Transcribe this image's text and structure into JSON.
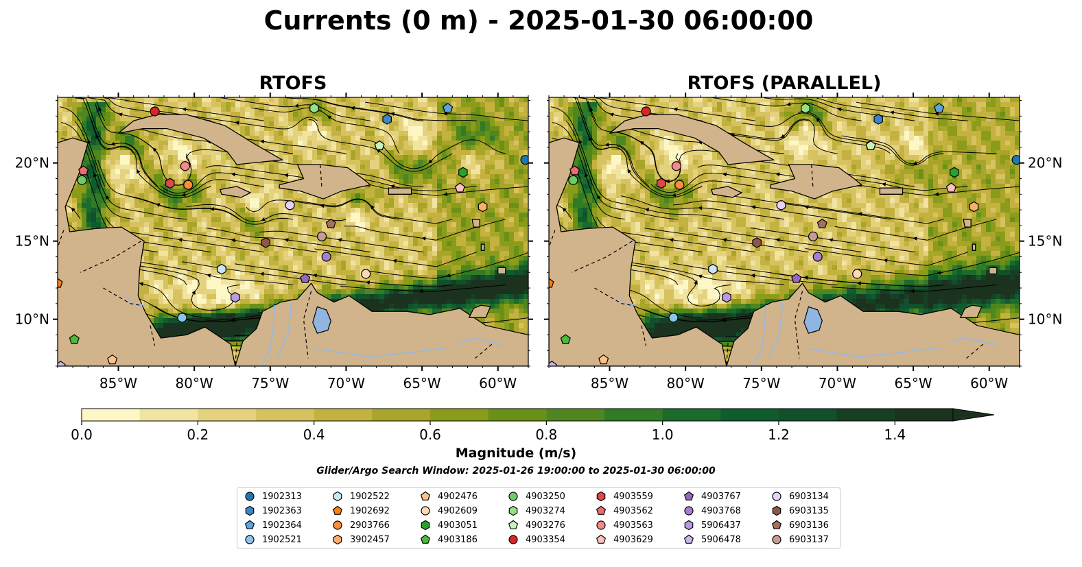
{
  "title": "Currents (0 m) - 2025-01-30 06:00:00",
  "panels": [
    {
      "title": "RTOFS"
    },
    {
      "title": "RTOFS (PARALLEL)"
    }
  ],
  "colorbar": {
    "label": "Magnitude (m/s)",
    "ticks": [
      "0.0",
      "0.2",
      "0.4",
      "0.6",
      "0.8",
      "1.0",
      "1.2",
      "1.4"
    ],
    "range": [
      0.0,
      1.5
    ],
    "extend": "max",
    "colors": [
      "#fdf7c6",
      "#f1e4a1",
      "#e5d27f",
      "#d6c35f",
      "#c4b240",
      "#a8a52a",
      "#8a9c1a",
      "#6a9018",
      "#4f8620",
      "#317a26",
      "#1a6b2c",
      "#0f5c2e",
      "#12502b",
      "#173f24",
      "#1a321e"
    ]
  },
  "search_window": "Glider/Argo Search Window: 2025-01-26 19:00:00 to 2025-01-30 06:00:00",
  "legend": [
    {
      "id": "1902313",
      "marker": "circle",
      "color": "#1f77b4"
    },
    {
      "id": "1902363",
      "marker": "hexagon",
      "color": "#3d86c6"
    },
    {
      "id": "1902364",
      "marker": "pentagon",
      "color": "#5ea2de"
    },
    {
      "id": "1902521",
      "marker": "circle",
      "color": "#8ec3ec"
    },
    {
      "id": "1902522",
      "marker": "hexagon",
      "color": "#c8e6f8"
    },
    {
      "id": "1902692",
      "marker": "pentagon",
      "color": "#ff7f0e"
    },
    {
      "id": "2903766",
      "marker": "circle",
      "color": "#fd8d3c"
    },
    {
      "id": "3902457",
      "marker": "hexagon",
      "color": "#fdae6b"
    },
    {
      "id": "4902476",
      "marker": "pentagon",
      "color": "#fdc28b"
    },
    {
      "id": "4902609",
      "marker": "circle",
      "color": "#fdd9b4"
    },
    {
      "id": "4903051",
      "marker": "hexagon",
      "color": "#2ca02c"
    },
    {
      "id": "4903186",
      "marker": "pentagon",
      "color": "#4cbb3c"
    },
    {
      "id": "4903250",
      "marker": "circle",
      "color": "#6fcb68"
    },
    {
      "id": "4903274",
      "marker": "hexagon",
      "color": "#98df8a"
    },
    {
      "id": "4903276",
      "marker": "pentagon",
      "color": "#c7f2bd"
    },
    {
      "id": "4903354",
      "marker": "circle",
      "color": "#d62728"
    },
    {
      "id": "4903559",
      "marker": "hexagon",
      "color": "#e0474a"
    },
    {
      "id": "4903562",
      "marker": "pentagon",
      "color": "#ec6b6d"
    },
    {
      "id": "4903563",
      "marker": "circle",
      "color": "#f4898b"
    },
    {
      "id": "4903629",
      "marker": "pentagon",
      "color": "#fcc0c0"
    },
    {
      "id": "4903767",
      "marker": "pentagon",
      "color": "#9467bd"
    },
    {
      "id": "4903768",
      "marker": "circle",
      "color": "#a57fcf"
    },
    {
      "id": "5906437",
      "marker": "hexagon",
      "color": "#b99be0"
    },
    {
      "id": "5906478",
      "marker": "pentagon",
      "color": "#ccb7ec"
    },
    {
      "id": "6903134",
      "marker": "circle",
      "color": "#e4d2f8"
    },
    {
      "id": "6903135",
      "marker": "hexagon",
      "color": "#8c564b"
    },
    {
      "id": "6903136",
      "marker": "pentagon",
      "color": "#a1705f"
    },
    {
      "id": "6903137",
      "marker": "circle",
      "color": "#c49c94"
    }
  ],
  "chart_data": {
    "type": "map",
    "lon_range": [
      -89,
      -58
    ],
    "lat_range": [
      7,
      24.2
    ],
    "lon_ticks": [
      {
        "value": -85,
        "label": "85°W"
      },
      {
        "value": -80,
        "label": "80°W"
      },
      {
        "value": -75,
        "label": "75°W"
      },
      {
        "value": -70,
        "label": "70°W"
      },
      {
        "value": -65,
        "label": "65°W"
      },
      {
        "value": -60,
        "label": "60°W"
      }
    ],
    "lat_ticks": [
      {
        "value": 10,
        "label": "10°N"
      },
      {
        "value": 15,
        "label": "15°N"
      },
      {
        "value": 20,
        "label": "20°N"
      }
    ],
    "floats": [
      {
        "id": "4903354",
        "lon": -82.6,
        "lat": 23.3
      },
      {
        "id": "4903274",
        "lon": -72.1,
        "lat": 23.5
      },
      {
        "id": "1902364",
        "lon": -63.3,
        "lat": 23.5
      },
      {
        "id": "1902363",
        "lon": -67.3,
        "lat": 22.8
      },
      {
        "id": "4903276",
        "lon": -67.8,
        "lat": 21.1
      },
      {
        "id": "1902313",
        "lon": -58.2,
        "lat": 20.2
      },
      {
        "id": "4903562",
        "lon": -87.3,
        "lat": 19.5
      },
      {
        "id": "4903250",
        "lon": -87.4,
        "lat": 18.9
      },
      {
        "id": "4903563",
        "lon": -80.6,
        "lat": 19.8
      },
      {
        "id": "4903559",
        "lon": -81.6,
        "lat": 18.7
      },
      {
        "id": "2903766",
        "lon": -80.4,
        "lat": 18.6
      },
      {
        "id": "4903051",
        "lon": -62.3,
        "lat": 19.4
      },
      {
        "id": "4903629",
        "lon": -62.5,
        "lat": 18.4
      },
      {
        "id": "6903134",
        "lon": -73.7,
        "lat": 17.3
      },
      {
        "id": "3902457",
        "lon": -61.0,
        "lat": 17.2
      },
      {
        "id": "6903136",
        "lon": -71.0,
        "lat": 16.1
      },
      {
        "id": "6903137",
        "lon": -71.6,
        "lat": 15.3
      },
      {
        "id": "6903135",
        "lon": -75.3,
        "lat": 14.9
      },
      {
        "id": "4903768",
        "lon": -71.3,
        "lat": 14.0
      },
      {
        "id": "1902522",
        "lon": -78.2,
        "lat": 13.2
      },
      {
        "id": "4903767",
        "lon": -72.7,
        "lat": 12.6
      },
      {
        "id": "4902609",
        "lon": -68.7,
        "lat": 12.9
      },
      {
        "id": "5906437",
        "lon": -77.3,
        "lat": 11.4
      },
      {
        "id": "1902521",
        "lon": -80.8,
        "lat": 10.1
      },
      {
        "id": "1902692",
        "lon": -89.0,
        "lat": 12.3
      },
      {
        "id": "4903186",
        "lon": -87.9,
        "lat": 8.7
      },
      {
        "id": "4902476",
        "lon": -85.4,
        "lat": 7.4
      },
      {
        "id": "5906478",
        "lon": -88.8,
        "lat": 7.0
      }
    ]
  }
}
